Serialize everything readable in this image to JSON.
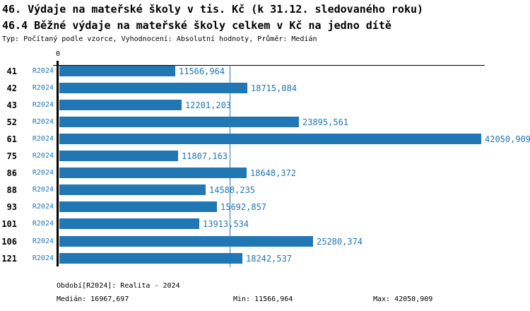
{
  "header": {
    "title1": "46. Výdaje na mateřské školy v tis. Kč (k 31.12. sledovaného roku)",
    "title2": "46.4 Běžné výdaje na mateřské školy celkem v Kč na jedno dítě",
    "subtitle": "Typ: Počítaný podle vzorce, Vyhodnocení: Absolutní hodnoty, Průměr: Medián"
  },
  "chart_data": {
    "type": "bar",
    "orientation": "horizontal",
    "axis_origin_label": "0",
    "categories": [
      "41",
      "42",
      "43",
      "52",
      "61",
      "75",
      "86",
      "88",
      "93",
      "101",
      "106",
      "121"
    ],
    "series": [
      {
        "name": "R2024",
        "values": [
          11566.964,
          18715.084,
          12201.203,
          23895.561,
          42050.909,
          11807.163,
          18648.372,
          14588.235,
          15692.857,
          13913.534,
          25280.374,
          18242.537
        ]
      }
    ],
    "value_labels": [
      "11566,964",
      "18715,084",
      "12201,203",
      "23895,561",
      "42050,909",
      "11807,163",
      "18648,372",
      "14588,235",
      "15692,857",
      "13913,534",
      "25280,374",
      "18242,537"
    ],
    "xlim": [
      0,
      42050.909
    ],
    "median_value": 16967.697,
    "grid": "off",
    "legend": "none",
    "bar_color": "#2176b4",
    "label_color": "#2176b4",
    "median_line_color": "#2176b4"
  },
  "footer": {
    "period_line": "Období[R2024]: Realita - 2024",
    "median_label": "Medián: 16967,697",
    "min_label": "Min: 11566,964",
    "max_label": "Max: 42050,909"
  }
}
